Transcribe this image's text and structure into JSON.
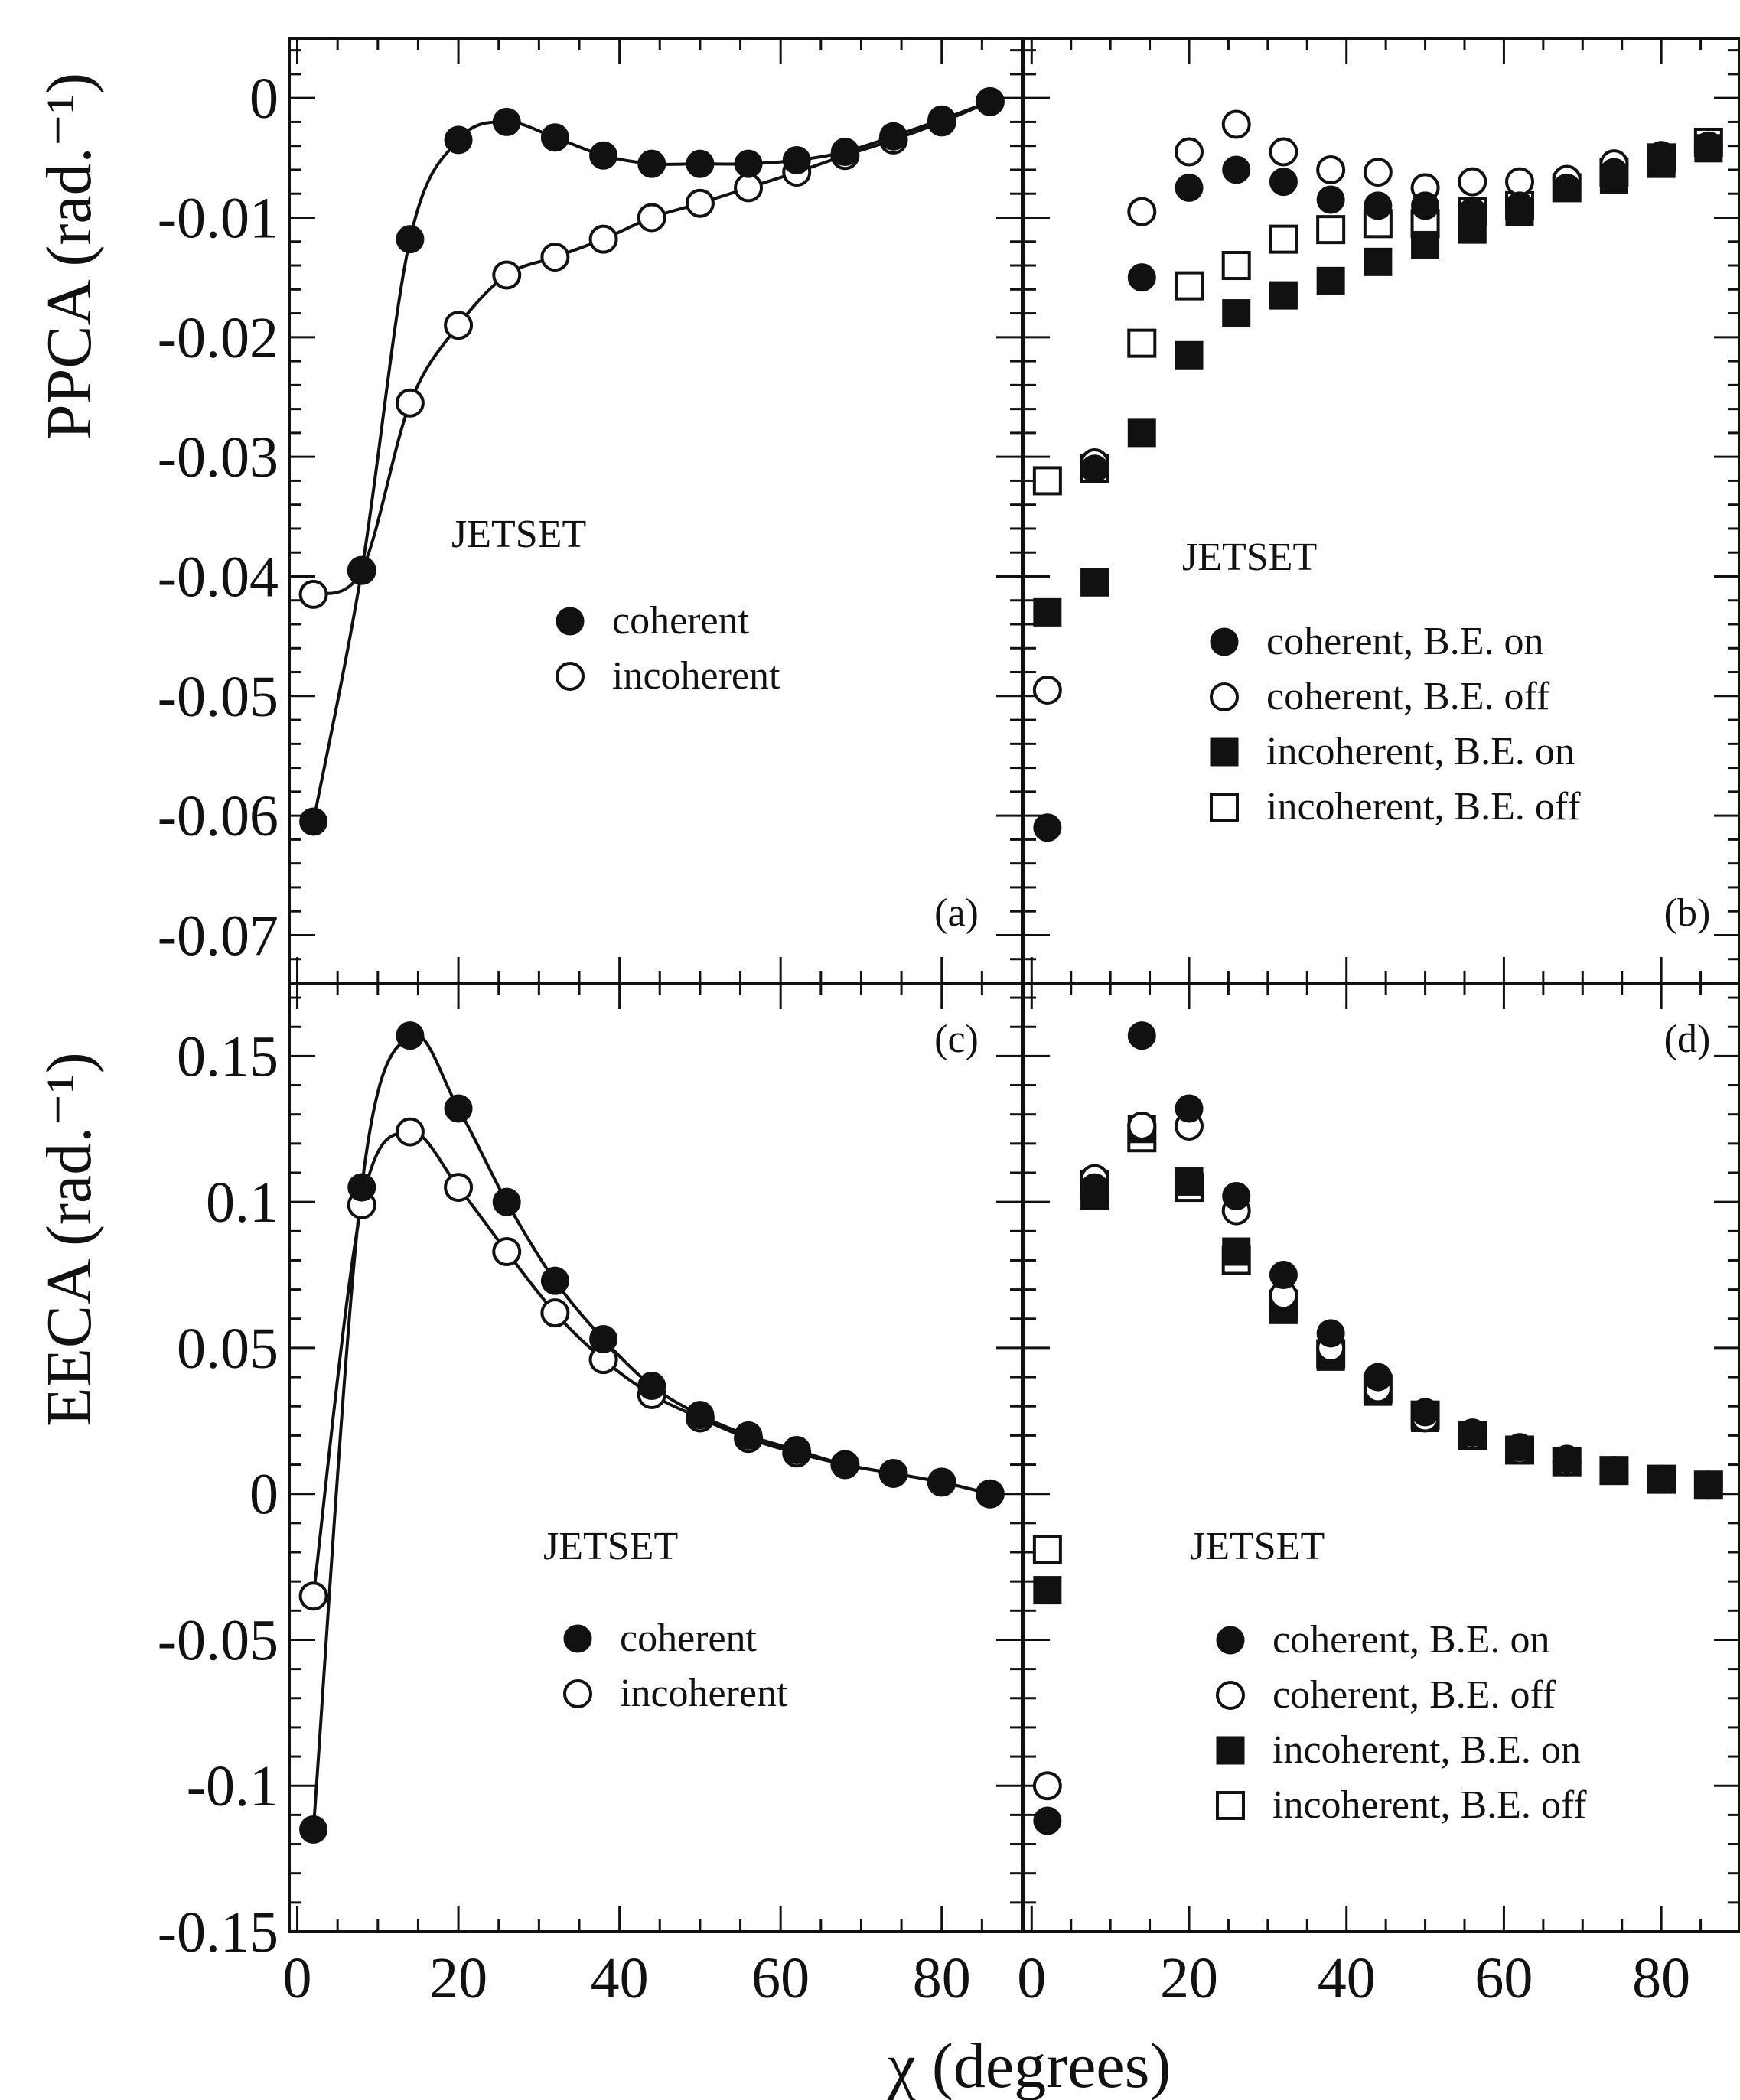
{
  "figure": {
    "xlabel": "χ  (degrees)",
    "ylabel_top": "PPCA  (rad.⁻¹)",
    "ylabel_bottom": "EECA  (rad.⁻¹)"
  },
  "chart_data": [
    {
      "panel": "a",
      "label": "(a)",
      "type": "line",
      "annotation": "JETSET",
      "legend": [
        {
          "symbol": "filled-circle",
          "text": "coherent"
        },
        {
          "symbol": "open-circle",
          "text": "incoherent"
        }
      ],
      "xlim": [
        -1,
        90
      ],
      "ylim": [
        -0.074,
        0.005
      ],
      "xticks": [
        "0",
        "20",
        "40",
        "60",
        "80"
      ],
      "xtick_values": [
        0,
        20,
        40,
        60,
        80
      ],
      "yticks": [
        "0",
        "-0.01",
        "-0.02",
        "-0.03",
        "-0.04",
        "-0.05",
        "-0.06",
        "-0.07"
      ],
      "ytick_values": [
        0,
        -0.01,
        -0.02,
        -0.03,
        -0.04,
        -0.05,
        -0.06,
        -0.07
      ],
      "x": [
        2,
        8,
        14,
        20,
        26,
        32,
        38,
        44,
        50,
        56,
        62,
        68,
        74,
        80,
        86
      ],
      "series": [
        {
          "name": "coherent",
          "marker": "filled-circle",
          "values": [
            -0.0605,
            -0.0395,
            -0.0118,
            -0.0035,
            -0.002,
            -0.0033,
            -0.0048,
            -0.0055,
            -0.0055,
            -0.0055,
            -0.0052,
            -0.0045,
            -0.0032,
            -0.0018,
            -0.0003
          ]
        },
        {
          "name": "incoherent",
          "marker": "open-circle",
          "values": [
            -0.0415,
            -0.0395,
            -0.0255,
            -0.019,
            -0.0148,
            -0.0133,
            -0.0118,
            -0.01,
            -0.0088,
            -0.0075,
            -0.0062,
            -0.0048,
            -0.0035,
            -0.002,
            -0.0003
          ]
        }
      ]
    },
    {
      "panel": "b",
      "label": "(b)",
      "type": "scatter",
      "annotation": "JETSET",
      "legend": [
        {
          "symbol": "filled-circle",
          "text": "coherent, B.E. on"
        },
        {
          "symbol": "open-circle",
          "text": "coherent, B.E. off"
        },
        {
          "symbol": "filled-square",
          "text": "incoherent, B.E. on"
        },
        {
          "symbol": "open-square",
          "text": "incoherent, B.E. off"
        }
      ],
      "xlim": [
        -1,
        90
      ],
      "ylim": [
        -0.074,
        0.005
      ],
      "xticks": [
        "0",
        "20",
        "40",
        "60",
        "80"
      ],
      "xtick_values": [
        0,
        20,
        40,
        60,
        80
      ],
      "x": [
        2,
        8,
        14,
        20,
        26,
        32,
        38,
        44,
        50,
        56,
        62,
        68,
        74,
        80,
        86
      ],
      "series": [
        {
          "name": "coherent, B.E. on",
          "marker": "filled-circle",
          "values": [
            -0.061,
            -0.031,
            -0.015,
            -0.0075,
            -0.006,
            -0.007,
            -0.0085,
            -0.009,
            -0.009,
            -0.0095,
            -0.009,
            -0.0075,
            -0.0062,
            -0.005,
            -0.004
          ]
        },
        {
          "name": "coherent, B.E. off",
          "marker": "open-circle",
          "values": [
            -0.0495,
            -0.0305,
            -0.0095,
            -0.0045,
            -0.0022,
            -0.0045,
            -0.006,
            -0.0062,
            -0.0075,
            -0.007,
            -0.007,
            -0.0068,
            -0.0055,
            -0.0048,
            -0.004
          ]
        },
        {
          "name": "incoherent, B.E. on",
          "marker": "filled-square",
          "values": [
            -0.043,
            -0.0405,
            -0.028,
            -0.0215,
            -0.018,
            -0.0165,
            -0.0153,
            -0.0137,
            -0.0123,
            -0.011,
            -0.0095,
            -0.0075,
            -0.0068,
            -0.0055,
            -0.0042
          ]
        },
        {
          "name": "incoherent, B.E. off",
          "marker": "open-square",
          "values": [
            -0.032,
            -0.031,
            -0.0205,
            -0.0157,
            -0.014,
            -0.0118,
            -0.011,
            -0.0105,
            -0.0105,
            -0.0095,
            -0.009,
            -0.0075,
            -0.0062,
            -0.005,
            -0.0037
          ]
        }
      ]
    },
    {
      "panel": "c",
      "label": "(c)",
      "type": "line",
      "annotation": "JETSET",
      "legend": [
        {
          "symbol": "filled-circle",
          "text": "coherent"
        },
        {
          "symbol": "open-circle",
          "text": "incoherent"
        }
      ],
      "xlim": [
        -1,
        90
      ],
      "ylim": [
        -0.15,
        0.175
      ],
      "xticks": [
        "0",
        "20",
        "40",
        "60",
        "80"
      ],
      "xtick_values": [
        0,
        20,
        40,
        60,
        80
      ],
      "yticks": [
        "0.15",
        "0.1",
        "0.05",
        "0",
        "-0.05",
        "-0.1",
        "-0.15"
      ],
      "ytick_values": [
        0.15,
        0.1,
        0.05,
        0,
        -0.05,
        -0.1,
        -0.15
      ],
      "x": [
        2,
        8,
        14,
        20,
        26,
        32,
        38,
        44,
        50,
        56,
        62,
        68,
        74,
        80,
        86
      ],
      "series": [
        {
          "name": "coherent",
          "marker": "filled-circle",
          "values": [
            -0.115,
            0.105,
            0.157,
            0.132,
            0.1,
            0.073,
            0.053,
            0.037,
            0.027,
            0.02,
            0.015,
            0.01,
            0.007,
            0.004,
            0.0
          ]
        },
        {
          "name": "incoherent",
          "marker": "open-circle",
          "values": [
            -0.035,
            0.099,
            0.124,
            0.105,
            0.083,
            0.062,
            0.046,
            0.034,
            0.026,
            0.019,
            0.014,
            0.01,
            0.007,
            0.004,
            0.0
          ]
        }
      ]
    },
    {
      "panel": "d",
      "label": "(d)",
      "type": "scatter",
      "annotation": "JETSET",
      "legend": [
        {
          "symbol": "filled-circle",
          "text": "coherent, B.E. on"
        },
        {
          "symbol": "open-circle",
          "text": "coherent, B.E. off"
        },
        {
          "symbol": "filled-square",
          "text": "incoherent, B.E. on"
        },
        {
          "symbol": "open-square",
          "text": "incoherent, B.E. off"
        }
      ],
      "xlim": [
        -1,
        90
      ],
      "ylim": [
        -0.15,
        0.175
      ],
      "xticks": [
        "0",
        "20",
        "40",
        "60",
        "80"
      ],
      "xtick_values": [
        0,
        20,
        40,
        60,
        80
      ],
      "x": [
        2,
        8,
        14,
        20,
        26,
        32,
        38,
        44,
        50,
        56,
        62,
        68,
        74,
        80,
        86
      ],
      "series": [
        {
          "name": "coherent, B.E. on",
          "marker": "filled-circle",
          "values": [
            -0.112,
            0.105,
            0.157,
            0.132,
            0.102,
            0.075,
            0.055,
            0.04,
            0.028,
            0.021,
            0.016,
            0.012,
            0.008,
            0.005,
            0.003
          ]
        },
        {
          "name": "coherent, B.E. off",
          "marker": "open-circle",
          "values": [
            -0.1,
            0.108,
            0.126,
            0.126,
            0.097,
            0.068,
            0.05,
            0.036,
            0.026,
            0.02,
            0.015,
            0.011,
            0.008,
            0.005,
            0.003
          ]
        },
        {
          "name": "incoherent, B.E. on",
          "marker": "filled-square",
          "values": [
            -0.033,
            0.102,
            0.125,
            0.107,
            0.083,
            0.063,
            0.047,
            0.035,
            0.026,
            0.02,
            0.015,
            0.011,
            0.008,
            0.005,
            0.003
          ]
        },
        {
          "name": "incoherent, B.E. off",
          "marker": "open-square",
          "values": [
            -0.019,
            0.106,
            0.122,
            0.105,
            0.08,
            0.065,
            0.048,
            0.036,
            0.027,
            0.02,
            0.015,
            0.011,
            0.008,
            0.005,
            0.003
          ]
        }
      ]
    }
  ]
}
